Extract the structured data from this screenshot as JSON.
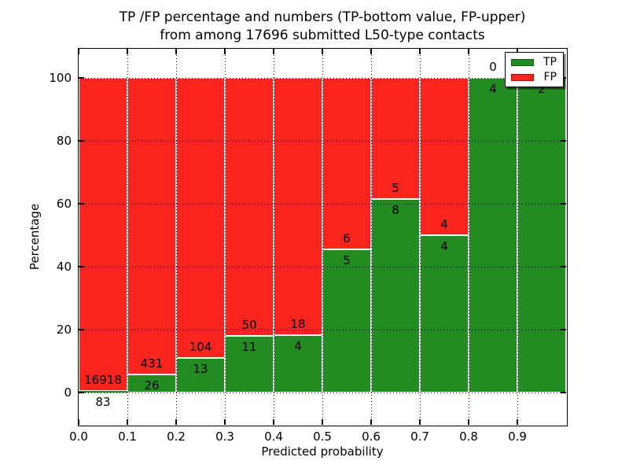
{
  "figure": {
    "title_line1": "TP /FP percentage and numbers (TP-bottom value, FP-upper)",
    "title_line2": "from among 17696 submitted L50-type contacts",
    "xlabel": "Predicted probability",
    "ylabel": "Percentage"
  },
  "legend": {
    "items": [
      {
        "label": "TP",
        "color": "#228b22"
      },
      {
        "label": "FP",
        "color": "#fa241e"
      }
    ]
  },
  "chart_data": {
    "type": "bar",
    "stacked": true,
    "title": "TP /FP percentage and numbers (TP-bottom value, FP-upper) from among 17696 submitted L50-type contacts",
    "xlabel": "Predicted probability",
    "ylabel": "Percentage",
    "xlim": [
      0.0,
      1.0
    ],
    "ylim": [
      -10.25,
      109.25
    ],
    "x_ticks": [
      "0.0",
      "0.1",
      "0.2",
      "0.3",
      "0.4",
      "0.5",
      "0.6",
      "0.7",
      "0.8",
      "0.9"
    ],
    "y_ticks": [
      0,
      20,
      40,
      60,
      80,
      100
    ],
    "grid": "dotted",
    "legend_position": "upper right",
    "colors": {
      "tp": "#228b22",
      "fp": "#fa241e",
      "bar_edge": "#ffffff"
    },
    "bars": [
      {
        "x_start": 0.0,
        "x_end": 0.1,
        "tp_count": 83,
        "fp_count": 16918,
        "tp_pct": 0.49,
        "fp_pct": 99.51
      },
      {
        "x_start": 0.1,
        "x_end": 0.2,
        "tp_count": 26,
        "fp_count": 431,
        "tp_pct": 5.69,
        "fp_pct": 94.31
      },
      {
        "x_start": 0.2,
        "x_end": 0.3,
        "tp_count": 13,
        "fp_count": 104,
        "tp_pct": 11.11,
        "fp_pct": 88.89
      },
      {
        "x_start": 0.3,
        "x_end": 0.4,
        "tp_count": 11,
        "fp_count": 50,
        "tp_pct": 18.03,
        "fp_pct": 81.97
      },
      {
        "x_start": 0.4,
        "x_end": 0.5,
        "tp_count": 4,
        "fp_count": 18,
        "tp_pct": 18.18,
        "fp_pct": 81.82
      },
      {
        "x_start": 0.5,
        "x_end": 0.6,
        "tp_count": 5,
        "fp_count": 6,
        "tp_pct": 45.45,
        "fp_pct": 54.55
      },
      {
        "x_start": 0.6,
        "x_end": 0.7,
        "tp_count": 8,
        "fp_count": 5,
        "tp_pct": 61.54,
        "fp_pct": 38.46
      },
      {
        "x_start": 0.7,
        "x_end": 0.8,
        "tp_count": 4,
        "fp_count": 4,
        "tp_pct": 50.0,
        "fp_pct": 50.0
      },
      {
        "x_start": 0.8,
        "x_end": 0.9,
        "tp_count": 4,
        "fp_count": 0,
        "tp_pct": 100.0,
        "fp_pct": 0.0
      },
      {
        "x_start": 0.9,
        "x_end": 1.0,
        "tp_count": 2,
        "fp_count": 0,
        "tp_pct": 100.0,
        "fp_pct": 0.0,
        "fp_label_occluded_by_legend": true
      }
    ]
  }
}
